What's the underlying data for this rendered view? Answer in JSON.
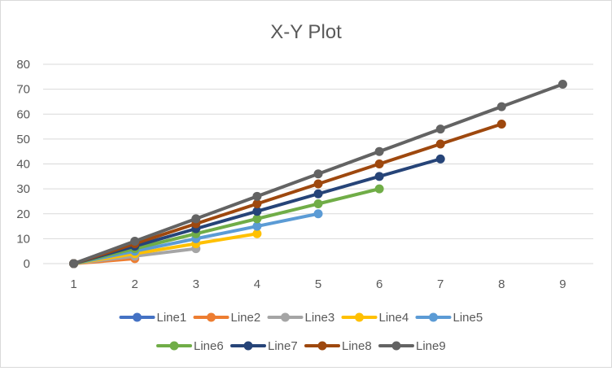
{
  "chart_data": {
    "type": "line",
    "title": "X-Y Plot",
    "xlabel": "",
    "ylabel": "",
    "x_ticks": [
      1,
      2,
      3,
      4,
      5,
      6,
      7,
      8,
      9
    ],
    "y_ticks": [
      0,
      10,
      20,
      30,
      40,
      50,
      60,
      70,
      80
    ],
    "xlim": [
      1,
      9
    ],
    "ylim": [
      0,
      80
    ],
    "grid": true,
    "legend_position": "bottom",
    "series": [
      {
        "name": "Line1",
        "color": "#4472c4",
        "x": [
          1
        ],
        "y": [
          0
        ]
      },
      {
        "name": "Line2",
        "color": "#ed7d31",
        "x": [
          1,
          2
        ],
        "y": [
          0,
          2
        ]
      },
      {
        "name": "Line3",
        "color": "#a5a5a5",
        "x": [
          1,
          2,
          3
        ],
        "y": [
          0,
          3,
          6
        ]
      },
      {
        "name": "Line4",
        "color": "#ffc000",
        "x": [
          1,
          2,
          3,
          4
        ],
        "y": [
          0,
          4,
          8,
          12
        ]
      },
      {
        "name": "Line5",
        "color": "#5b9bd5",
        "x": [
          1,
          2,
          3,
          4,
          5
        ],
        "y": [
          0,
          5,
          10,
          15,
          20
        ]
      },
      {
        "name": "Line6",
        "color": "#70ad47",
        "x": [
          1,
          2,
          3,
          4,
          5,
          6
        ],
        "y": [
          0,
          6,
          12,
          18,
          24,
          30
        ]
      },
      {
        "name": "Line7",
        "color": "#264478",
        "x": [
          1,
          2,
          3,
          4,
          5,
          6,
          7
        ],
        "y": [
          0,
          7,
          14,
          21,
          28,
          35,
          42
        ]
      },
      {
        "name": "Line8",
        "color": "#9e480e",
        "x": [
          1,
          2,
          3,
          4,
          5,
          6,
          7,
          8
        ],
        "y": [
          0,
          8,
          16,
          24,
          32,
          40,
          48,
          56
        ]
      },
      {
        "name": "Line9",
        "color": "#636363",
        "x": [
          1,
          2,
          3,
          4,
          5,
          6,
          7,
          8,
          9
        ],
        "y": [
          0,
          9,
          18,
          27,
          36,
          45,
          54,
          63,
          72
        ]
      }
    ]
  }
}
